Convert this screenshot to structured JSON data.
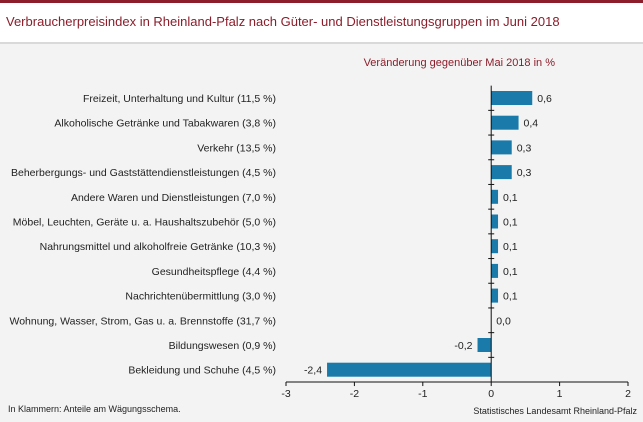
{
  "header": {
    "title": "Verbraucherpreisindex in Rheinland-Pfalz nach Güter- und Dienstleistungsgruppen im Juni 2018"
  },
  "footer": {
    "note": "In Klammern: Anteile am Wägungsschema.",
    "source": "Statistisches Landesamt Rheinland-Pfalz"
  },
  "colors": {
    "accent": "#8c1d2a",
    "bar": "#1a7bab",
    "panel": "#f3f3f3"
  },
  "chart_data": {
    "type": "bar",
    "orientation": "horizontal",
    "title": "Verbraucherpreisindex in Rheinland-Pfalz nach Güter- und Dienstleistungsgruppen im Juni 2018",
    "subtitle": "Veränderung gegenüber Mai 2018 in %",
    "xlim": [
      -3,
      2
    ],
    "xticks": [
      -3,
      -2,
      -1,
      0,
      1,
      2
    ],
    "grid": false,
    "categories": [
      "Freizeit, Unterhaltung und Kultur (11,5 %)",
      "Alkoholische Getränke und Tabakwaren (3,8 %)",
      "Verkehr (13,5 %)",
      "Beherbergungs- und Gaststättendienstleistungen (4,5 %)",
      "Andere Waren und Dienstleistungen (7,0 %)",
      "Möbel, Leuchten, Geräte u. a. Haushaltszubehör (5,0 %)",
      "Nahrungsmittel und alkoholfreie Getränke (10,3 %)",
      "Gesundheitspflege (4,4 %)",
      "Nachrichtenübermittlung (3,0 %)",
      "Wohnung, Wasser, Strom, Gas u. a. Brennstoffe (31,7 %)",
      "Bildungswesen (0,9 %)",
      "Bekleidung und Schuhe (4,5 %)"
    ],
    "values": [
      0.6,
      0.4,
      0.3,
      0.3,
      0.1,
      0.1,
      0.1,
      0.1,
      0.1,
      0.0,
      -0.2,
      -2.4
    ],
    "value_labels": [
      "0,6",
      "0,4",
      "0,3",
      "0,3",
      "0,1",
      "0,1",
      "0,1",
      "0,1",
      "0,1",
      "0,0",
      "-0,2",
      "-2,4"
    ]
  }
}
